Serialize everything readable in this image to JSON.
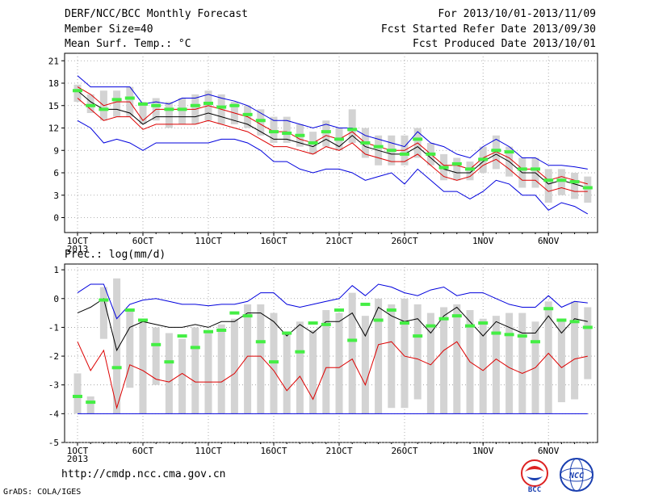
{
  "header": {
    "title": "DERF/NCC/BCC Monthly Forecast",
    "member_size": "Member Size=40",
    "variable": "Mean Surf. Temp.: °C",
    "period": "For 2013/10/01-2013/11/09",
    "fcst_started": "Fcst Started Refer Date 2013/09/30",
    "fcst_produced": "Fcst Produced Date 2013/10/01"
  },
  "precip_label": "Prec.: log(mm/d)",
  "website": "http://cmdp.ncc.cma.gov.cn",
  "grads_credit": "GrADS: COLA/IGES",
  "logos": {
    "bcc_text": "BCC",
    "ncc_text": "NCC"
  },
  "colors": {
    "max": "#0000dd",
    "min": "#0000dd",
    "upper": "#dd0000",
    "lower": "#dd0000",
    "mean": "#000000",
    "obs": "#44ee44",
    "box": "#d3d3d3"
  },
  "x_ticks": [
    {
      "day": 1,
      "label": "1OCT"
    },
    {
      "day": 6,
      "label": "6OCT"
    },
    {
      "day": 11,
      "label": "11OCT"
    },
    {
      "day": 16,
      "label": "16OCT"
    },
    {
      "day": 21,
      "label": "21OCT"
    },
    {
      "day": 26,
      "label": "26OCT"
    },
    {
      "day": 32,
      "label": "1NOV"
    },
    {
      "day": 37,
      "label": "6NOV"
    }
  ],
  "year_label": "2013",
  "chart_data": [
    {
      "type": "line",
      "ylabel": "Mean Surf. Temp.: °C",
      "ylim": [
        -2,
        22
      ],
      "yticks": [
        0,
        3,
        6,
        9,
        12,
        15,
        18,
        21
      ],
      "grid": true,
      "x": [
        1,
        2,
        3,
        4,
        5,
        6,
        7,
        8,
        9,
        10,
        11,
        12,
        13,
        14,
        15,
        16,
        17,
        18,
        19,
        20,
        21,
        22,
        23,
        24,
        25,
        26,
        27,
        28,
        29,
        30,
        31,
        32,
        33,
        34,
        35,
        36,
        37,
        38,
        39,
        40
      ],
      "series": [
        {
          "key": "max",
          "values": [
            19.0,
            17.5,
            17.5,
            17.5,
            17.5,
            15.2,
            15.5,
            15.2,
            16.0,
            16.0,
            16.5,
            16.0,
            15.6,
            15.0,
            14.0,
            13.0,
            13.0,
            12.5,
            12.0,
            12.5,
            12.0,
            12.0,
            11.0,
            10.5,
            10.0,
            9.5,
            11.5,
            10.0,
            9.5,
            8.5,
            8.0,
            9.5,
            10.5,
            9.5,
            8.0,
            8.0,
            7.0,
            7.0,
            6.8,
            6.5
          ]
        },
        {
          "key": "upper",
          "values": [
            17.5,
            16.5,
            15.0,
            15.5,
            15.5,
            13.0,
            14.5,
            14.5,
            14.5,
            14.5,
            15.0,
            14.5,
            14.0,
            13.5,
            12.5,
            11.5,
            11.5,
            10.5,
            10.0,
            11.0,
            10.5,
            11.5,
            10.0,
            9.5,
            9.0,
            9.0,
            10.0,
            8.5,
            7.0,
            7.0,
            6.5,
            8.0,
            8.8,
            8.0,
            6.5,
            6.5,
            5.0,
            5.5,
            5.0,
            4.5
          ]
        },
        {
          "key": "mean",
          "values": [
            17.0,
            15.5,
            14.5,
            14.5,
            14.0,
            12.5,
            13.5,
            13.5,
            13.5,
            13.5,
            14.0,
            13.5,
            13.0,
            12.5,
            11.5,
            10.5,
            10.5,
            10.0,
            9.5,
            10.5,
            9.5,
            11.0,
            9.5,
            9.0,
            8.5,
            8.5,
            9.5,
            8.0,
            6.5,
            6.0,
            6.0,
            7.5,
            8.5,
            7.5,
            6.0,
            6.0,
            4.5,
            5.0,
            4.5,
            4.0
          ]
        },
        {
          "key": "lower",
          "values": [
            16.0,
            14.5,
            13.0,
            13.5,
            13.5,
            11.8,
            12.5,
            12.5,
            12.5,
            12.5,
            13.0,
            12.5,
            12.0,
            11.5,
            10.5,
            9.5,
            9.5,
            9.0,
            8.5,
            9.5,
            9.0,
            10.0,
            8.5,
            8.0,
            7.5,
            7.5,
            8.5,
            7.0,
            5.5,
            5.0,
            5.5,
            7.0,
            7.8,
            6.5,
            5.0,
            5.0,
            3.5,
            4.0,
            3.5,
            3.5
          ]
        },
        {
          "key": "min",
          "values": [
            13.0,
            12.0,
            10.0,
            10.5,
            10.0,
            9.0,
            10.0,
            10.0,
            10.0,
            10.0,
            10.0,
            10.5,
            10.5,
            10.0,
            9.0,
            7.5,
            7.5,
            6.5,
            6.0,
            6.5,
            6.5,
            6.0,
            5.0,
            5.5,
            6.0,
            4.5,
            6.5,
            5.0,
            3.5,
            3.5,
            2.5,
            3.5,
            5.0,
            4.5,
            3.0,
            3.0,
            1.0,
            2.0,
            1.5,
            0.5
          ]
        }
      ],
      "box_ranges": [
        [
          15.5,
          17.8
        ],
        [
          14.0,
          16.5
        ],
        [
          13.0,
          17.0
        ],
        [
          13.5,
          17.0
        ],
        [
          13.5,
          17.5
        ],
        [
          12.5,
          15.5
        ],
        [
          13.0,
          16.0
        ],
        [
          12.0,
          15.5
        ],
        [
          12.5,
          16.0
        ],
        [
          12.5,
          16.5
        ],
        [
          13.0,
          17.0
        ],
        [
          12.5,
          16.5
        ],
        [
          12.5,
          15.5
        ],
        [
          12.0,
          15.0
        ],
        [
          11.0,
          14.5
        ],
        [
          10.0,
          13.5
        ],
        [
          10.0,
          13.5
        ],
        [
          9.5,
          12.5
        ],
        [
          8.5,
          11.5
        ],
        [
          9.5,
          13.0
        ],
        [
          9.0,
          12.0
        ],
        [
          10.0,
          14.5
        ],
        [
          8.0,
          12.0
        ],
        [
          7.0,
          11.0
        ],
        [
          7.0,
          11.0
        ],
        [
          7.0,
          11.0
        ],
        [
          8.0,
          12.0
        ],
        [
          7.0,
          10.0
        ],
        [
          5.0,
          8.5
        ],
        [
          5.0,
          8.0
        ],
        [
          5.0,
          7.5
        ],
        [
          6.0,
          9.5
        ],
        [
          6.5,
          11.0
        ],
        [
          5.5,
          9.5
        ],
        [
          4.0,
          8.0
        ],
        [
          4.0,
          8.0
        ],
        [
          2.0,
          6.5
        ],
        [
          3.0,
          6.5
        ],
        [
          2.5,
          6.0
        ],
        [
          2.0,
          5.5
        ]
      ],
      "obs": [
        17.0,
        15.0,
        14.5,
        15.8,
        16.0,
        15.2,
        15.0,
        14.5,
        14.5,
        15.0,
        15.3,
        14.8,
        15.0,
        13.8,
        13.0,
        11.5,
        11.3,
        11.0,
        10.0,
        11.5,
        10.5,
        11.8,
        10.0,
        9.5,
        9.0,
        8.5,
        10.5,
        8.5,
        6.7,
        7.2,
        6.5,
        7.8,
        9.0,
        8.8,
        6.5,
        6.5,
        5.0,
        5.0,
        4.8,
        4.0
      ]
    },
    {
      "type": "line",
      "ylabel": "Prec.: log(mm/d)",
      "ylim": [
        -5,
        1.2
      ],
      "yticks": [
        -5,
        -4,
        -3,
        -2,
        -1,
        0,
        1
      ],
      "grid": true,
      "x": [
        1,
        2,
        3,
        4,
        5,
        6,
        7,
        8,
        9,
        10,
        11,
        12,
        13,
        14,
        15,
        16,
        17,
        18,
        19,
        20,
        21,
        22,
        23,
        24,
        25,
        26,
        27,
        28,
        29,
        30,
        31,
        32,
        33,
        34,
        35,
        36,
        37,
        38,
        39,
        40
      ],
      "series": [
        {
          "key": "max",
          "values": [
            0.2,
            0.5,
            0.5,
            -0.7,
            -0.2,
            -0.05,
            0.0,
            -0.1,
            -0.2,
            -0.2,
            -0.25,
            -0.2,
            -0.2,
            -0.1,
            0.2,
            0.2,
            -0.2,
            -0.3,
            -0.2,
            -0.1,
            0.0,
            0.45,
            0.1,
            0.5,
            0.4,
            0.2,
            0.1,
            0.3,
            0.4,
            0.1,
            0.2,
            0.2,
            0.0,
            -0.2,
            -0.3,
            -0.3,
            0.1,
            -0.3,
            -0.1,
            -0.15
          ]
        },
        {
          "key": "mean",
          "values": [
            -0.5,
            -0.3,
            0.0,
            -1.8,
            -1.0,
            -0.8,
            -0.9,
            -1.0,
            -1.0,
            -0.9,
            -1.0,
            -0.8,
            -0.8,
            -0.5,
            -0.5,
            -0.8,
            -1.3,
            -0.9,
            -1.2,
            -0.8,
            -0.8,
            -0.5,
            -1.3,
            -0.3,
            -0.6,
            -0.8,
            -0.7,
            -1.2,
            -0.6,
            -0.3,
            -0.8,
            -1.3,
            -0.8,
            -1.0,
            -1.2,
            -1.2,
            -0.6,
            -1.2,
            -0.7,
            -0.8
          ]
        },
        {
          "key": "lower",
          "values": [
            -1.5,
            -2.5,
            -1.8,
            -3.8,
            -2.3,
            -2.5,
            -2.8,
            -2.9,
            -2.6,
            -2.9,
            -2.9,
            -2.9,
            -2.6,
            -2.0,
            -2.0,
            -2.5,
            -3.2,
            -2.7,
            -3.5,
            -2.4,
            -2.4,
            -2.1,
            -3.0,
            -1.6,
            -1.5,
            -2.0,
            -2.1,
            -2.3,
            -1.8,
            -1.5,
            -2.2,
            -2.5,
            -2.1,
            -2.4,
            -2.6,
            -2.4,
            -1.9,
            -2.4,
            -2.1,
            -2.0
          ]
        },
        {
          "key": "min",
          "values": [
            -4.0,
            -4.0,
            -4.0,
            -4.0,
            -4.0,
            -4.0,
            -4.0,
            -4.0,
            -4.0,
            -4.0,
            -4.0,
            -4.0,
            -4.0,
            -4.0,
            -4.0,
            -4.0,
            -4.0,
            -4.0,
            -4.0,
            -4.0,
            -4.0,
            -4.0,
            -4.0,
            -4.0,
            -4.0,
            -4.0,
            -4.0,
            -4.0,
            -4.0,
            -4.0,
            -4.0,
            -4.0,
            -4.0,
            -4.0,
            -4.0,
            -4.0,
            -4.0,
            -4.0,
            -4.0,
            -4.0
          ]
        }
      ],
      "box_ranges": [
        [
          -4.0,
          -2.6
        ],
        [
          -4.0,
          -3.4
        ],
        [
          -1.4,
          0.4
        ],
        [
          -4.0,
          0.7
        ],
        [
          -3.1,
          -0.4
        ],
        [
          -4.0,
          -0.7
        ],
        [
          -3.0,
          -1.0
        ],
        [
          -4.0,
          -1.2
        ],
        [
          -4.0,
          -1.4
        ],
        [
          -4.0,
          -1.0
        ],
        [
          -4.0,
          -1.2
        ],
        [
          -4.0,
          -0.9
        ],
        [
          -4.0,
          -0.7
        ],
        [
          -4.0,
          -0.2
        ],
        [
          -4.0,
          -0.2
        ],
        [
          -4.0,
          -0.5
        ],
        [
          -4.0,
          -1.2
        ],
        [
          -4.0,
          -0.8
        ],
        [
          -4.0,
          -1.1
        ],
        [
          -4.0,
          -0.4
        ],
        [
          -4.0,
          -0.5
        ],
        [
          -4.0,
          0.2
        ],
        [
          -4.0,
          -0.6
        ],
        [
          -4.0,
          0.0
        ],
        [
          -3.8,
          -0.2
        ],
        [
          -3.8,
          0.0
        ],
        [
          -3.5,
          -0.2
        ],
        [
          -4.0,
          -0.5
        ],
        [
          -4.0,
          -0.3
        ],
        [
          -4.0,
          -0.2
        ],
        [
          -4.0,
          -0.4
        ],
        [
          -4.0,
          -0.7
        ],
        [
          -4.0,
          -0.6
        ],
        [
          -4.0,
          -0.5
        ],
        [
          -4.0,
          -0.5
        ],
        [
          -4.0,
          -0.8
        ],
        [
          -4.0,
          -0.1
        ],
        [
          -3.6,
          -0.8
        ],
        [
          -3.5,
          -0.1
        ],
        [
          -2.8,
          -0.3
        ]
      ],
      "obs": [
        -3.4,
        -3.6,
        -0.05,
        -2.4,
        -0.4,
        -0.75,
        -1.6,
        -2.2,
        -1.3,
        -1.7,
        -1.15,
        -1.1,
        -0.5,
        -0.6,
        -1.5,
        -2.2,
        -1.2,
        -1.85,
        -0.85,
        -0.9,
        -0.4,
        -1.45,
        -0.2,
        -0.75,
        -0.4,
        -0.85,
        -1.3,
        -0.95,
        -0.7,
        -0.6,
        -0.95,
        -0.85,
        -1.2,
        -1.25,
        -1.3,
        -1.5,
        -0.35,
        -0.75,
        -0.8,
        -1.0
      ]
    }
  ]
}
